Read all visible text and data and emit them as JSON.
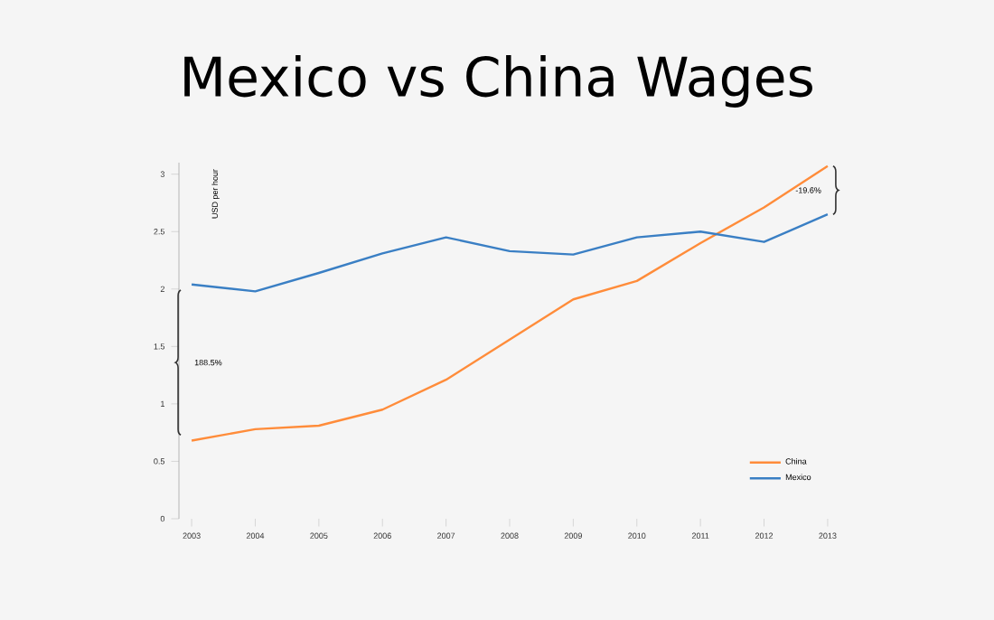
{
  "chart_data": {
    "type": "line",
    "title": "Mexico vs China Wages",
    "ylabel": "USD per hour",
    "x": [
      2003,
      2004,
      2005,
      2006,
      2007,
      2008,
      2009,
      2010,
      2011,
      2012,
      2013
    ],
    "series": [
      {
        "name": "China",
        "color": "#ff8c3a",
        "values": [
          0.68,
          0.78,
          0.81,
          0.95,
          1.21,
          1.56,
          1.91,
          2.07,
          2.4,
          2.71,
          3.07
        ]
      },
      {
        "name": "Mexico",
        "color": "#3a7fc4",
        "values": [
          2.04,
          1.98,
          2.14,
          2.31,
          2.45,
          2.33,
          2.3,
          2.45,
          2.5,
          2.41,
          2.65
        ]
      }
    ],
    "xlim": [
      2003,
      2013
    ],
    "xticks": [
      2003,
      2004,
      2005,
      2006,
      2007,
      2008,
      2009,
      2010,
      2011,
      2012,
      2013
    ],
    "ylim": [
      0,
      3.1
    ],
    "yticks": [
      0,
      0.5,
      1,
      1.5,
      2,
      2.5,
      3
    ],
    "annotations": [
      "188.5%",
      "-19.6%"
    ],
    "legend": "bottom right",
    "grid": false,
    "marker": "none",
    "line_style": "solid"
  }
}
